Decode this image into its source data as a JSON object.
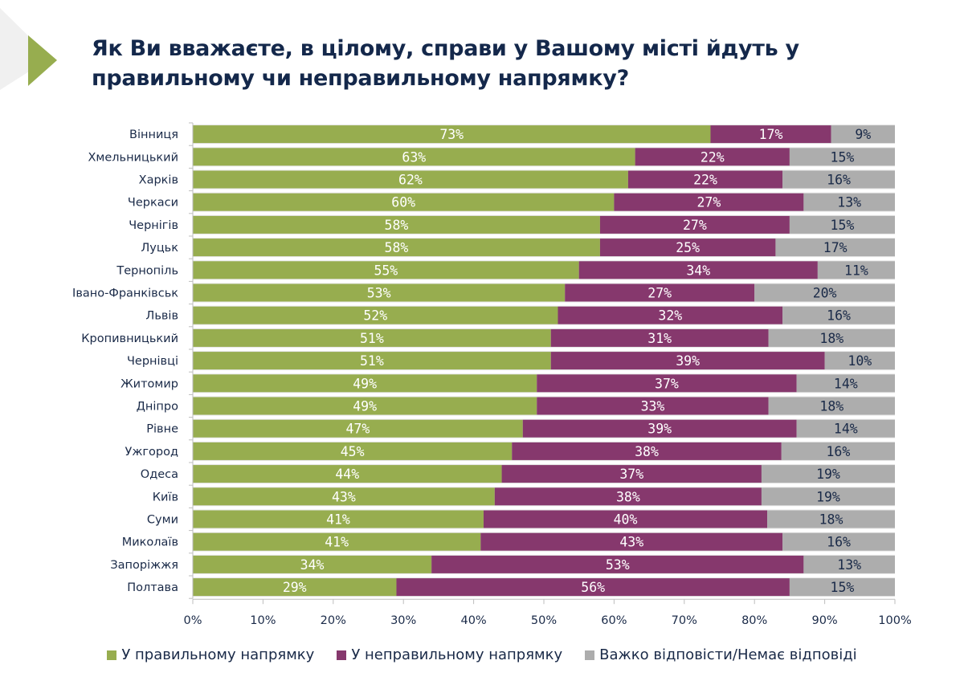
{
  "title": "Як Ви вважаєте, в цілому, справи у Вашому місті йдуть у правильному чи неправильному напрямку?",
  "colors": {
    "right": "#97ad4f",
    "wrong": "#86386d",
    "hard": "#adadad",
    "title": "#14284b",
    "accent_triangle": "#97ad4f"
  },
  "legend": [
    {
      "label": "У правильному напрямку",
      "color": "#97ad4f"
    },
    {
      "label": "У неправильному напрямку",
      "color": "#86386d"
    },
    {
      "label": "Важко відповісти/Немає відповіді",
      "color": "#adadad"
    }
  ],
  "chart_data": {
    "type": "bar",
    "orientation": "horizontal",
    "stacked": "percent",
    "title": "Як Ви вважаєте, в цілому, справи у Вашому місті йдуть у правильному чи неправильному напрямку?",
    "xlabel": "",
    "ylabel": "",
    "xlim": [
      0,
      100
    ],
    "x_ticks": [
      "0%",
      "10%",
      "20%",
      "30%",
      "40%",
      "50%",
      "60%",
      "70%",
      "80%",
      "90%",
      "100%"
    ],
    "grid": false,
    "legend_position": "bottom",
    "categories": [
      "Вінниця",
      "Хмельницький",
      "Харків",
      "Черкаси",
      "Чернігів",
      "Луцьк",
      "Тернопіль",
      "Івано-Франківськ",
      "Львів",
      "Кропивницький",
      "Чернівці",
      "Житомир",
      "Дніпро",
      "Рівне",
      "Ужгород",
      "Одеса",
      "Київ",
      "Суми",
      "Миколаїв",
      "Запоріжжя",
      "Полтава"
    ],
    "series": [
      {
        "name": "У правильному напрямку",
        "values": [
          73,
          63,
          62,
          60,
          58,
          58,
          55,
          53,
          52,
          51,
          51,
          49,
          49,
          47,
          45,
          44,
          43,
          41,
          41,
          34,
          29
        ]
      },
      {
        "name": "У неправильному напрямку",
        "values": [
          17,
          22,
          22,
          27,
          27,
          25,
          34,
          27,
          32,
          31,
          39,
          37,
          33,
          39,
          38,
          37,
          38,
          40,
          43,
          53,
          56
        ]
      },
      {
        "name": "Важко відповісти/Немає відповіді",
        "values": [
          9,
          15,
          16,
          13,
          15,
          17,
          11,
          20,
          16,
          18,
          10,
          14,
          18,
          14,
          16,
          19,
          19,
          18,
          16,
          13,
          15
        ]
      }
    ]
  }
}
